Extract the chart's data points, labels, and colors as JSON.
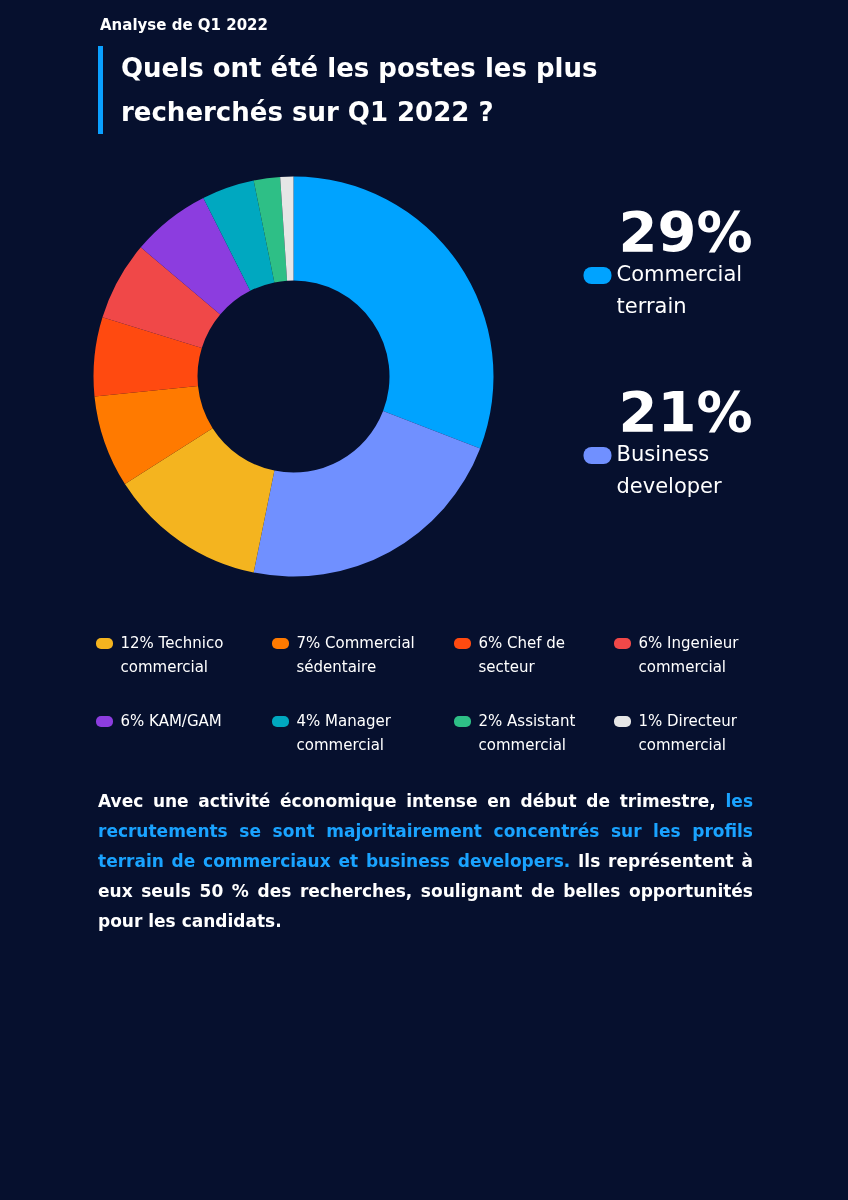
{
  "chart_data": {
    "type": "donut",
    "subtitle": "Analyse de Q1 2022",
    "title": "Quels ont été les postes les plus recherchés sur Q1 2022 ?",
    "categories": [
      "Commercial terrain",
      "Business developer",
      "Technico commercial",
      "Commercial sédentaire",
      "Chef de secteur",
      "Ingenieur commercial",
      "KAM/GAM",
      "Manager commercial",
      "Assistant commercial",
      "Directeur commercial"
    ],
    "values": [
      29,
      21,
      12,
      7,
      6,
      6,
      6,
      4,
      2,
      1
    ],
    "value_labels": [
      "29%",
      "21%",
      "12%",
      "7%",
      "6%",
      "6%",
      "6%",
      "4%",
      "2%",
      "1%"
    ],
    "colors": [
      "#00a3ff",
      "#7090ff",
      "#f4b41f",
      "#ff7a00",
      "#ff4a10",
      "#f04848",
      "#8c3ddf",
      "#00a8c0",
      "#2ebf86",
      "#e6e6e6"
    ],
    "legend": "bottom",
    "annotations": [
      "Avec une activité économique intense en début de trimestre,",
      "les recrutements se sont majoritairement concentrés sur les profils terrain de commerciaux et business developers.",
      "Ils représentent à eux seuls 50 % des recherches, soulignant de belles opportunités pour les candidats."
    ]
  }
}
